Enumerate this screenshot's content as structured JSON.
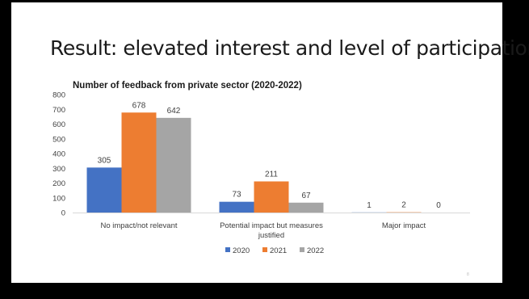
{
  "slide": {
    "title": "Result: elevated interest and level of participation",
    "page_number": "8"
  },
  "colors": {
    "series_2020": "#4472c4",
    "series_2021": "#ed7d31",
    "series_2022": "#a5a5a5",
    "axis": "#d9d9d9",
    "text": "#404040"
  },
  "chart_data": {
    "type": "bar",
    "title": "Number of feedback from private sector (2020-2022)",
    "xlabel": "",
    "ylabel": "",
    "categories": [
      [
        "No impact/not relevant"
      ],
      [
        "Potential impact but measures",
        "justified"
      ],
      [
        "Major impact"
      ]
    ],
    "series": [
      {
        "name": "2020",
        "values": [
          305,
          73,
          1
        ]
      },
      {
        "name": "2021",
        "values": [
          678,
          211,
          2
        ]
      },
      {
        "name": "2022",
        "values": [
          642,
          67,
          0
        ]
      }
    ],
    "ylim": [
      0,
      800
    ],
    "yticks": [
      0,
      100,
      200,
      300,
      400,
      500,
      600,
      700,
      800
    ],
    "grid": false,
    "legend": "bottom",
    "data_labels": true
  }
}
